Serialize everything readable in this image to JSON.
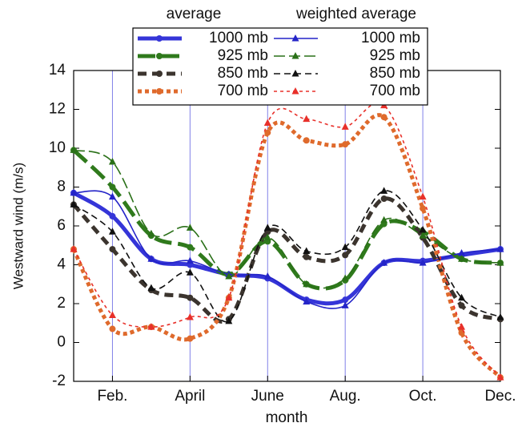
{
  "chart_data": {
    "type": "line",
    "legend_titles": [
      "average",
      "weighted average"
    ],
    "xlabel": "month",
    "ylabel": "Westward wind (m/s)",
    "x": [
      1,
      2,
      3,
      4,
      5,
      6,
      7,
      8,
      9,
      10,
      11,
      12
    ],
    "xlim": [
      1,
      12
    ],
    "xticks": [
      {
        "value": 2,
        "label": "Feb."
      },
      {
        "value": 4,
        "label": "April"
      },
      {
        "value": 6,
        "label": "June"
      },
      {
        "value": 8,
        "label": "Aug."
      },
      {
        "value": 10,
        "label": "Oct."
      },
      {
        "value": 12,
        "label": "Dec."
      }
    ],
    "ylim": [
      -2,
      14
    ],
    "yticks": [
      -2,
      0,
      2,
      4,
      6,
      8,
      10,
      12,
      14
    ],
    "grid": true,
    "series": [
      {
        "name": "1000 mb",
        "color": "#3535d8",
        "marker": "circle",
        "values": [
          7.7,
          6.5,
          4.3,
          4.0,
          3.5,
          3.3,
          2.2,
          2.2,
          4.1,
          4.2,
          4.5,
          4.8
        ]
      },
      {
        "name": "925 mb",
        "color": "#2f7a1c",
        "marker": "circle",
        "values": [
          9.9,
          8.0,
          5.5,
          4.9,
          3.5,
          5.2,
          3.0,
          3.2,
          6.1,
          5.7,
          4.3,
          4.1
        ]
      },
      {
        "name": "850 mb",
        "color": "#3b342e",
        "marker": "circle",
        "values": [
          7.1,
          4.8,
          2.7,
          2.3,
          1.2,
          5.7,
          4.4,
          4.5,
          7.4,
          5.4,
          1.9,
          1.2
        ]
      },
      {
        "name": "700 mb",
        "color": "#df6a2c",
        "marker": "circle",
        "values": [
          4.8,
          0.7,
          0.8,
          0.2,
          2.3,
          10.8,
          10.4,
          10.2,
          11.6,
          6.9,
          0.5,
          -1.8
        ]
      },
      {
        "name": "1000 mb",
        "color": "#2424c8",
        "marker": "triangle",
        "values": [
          7.7,
          7.5,
          4.3,
          4.2,
          3.5,
          3.4,
          2.1,
          1.9,
          4.1,
          4.1,
          4.6,
          4.8
        ]
      },
      {
        "name": "925 mb",
        "color": "#2a7018",
        "marker": "triangle",
        "values": [
          9.9,
          9.3,
          5.6,
          5.9,
          3.4,
          5.4,
          3.0,
          3.3,
          6.3,
          5.5,
          4.3,
          4.1
        ]
      },
      {
        "name": "850 mb",
        "color": "#111111",
        "marker": "triangle",
        "values": [
          7.1,
          5.7,
          2.8,
          3.6,
          1.1,
          5.9,
          4.7,
          4.9,
          7.8,
          5.8,
          2.3,
          1.3
        ]
      },
      {
        "name": "700 mb",
        "color": "#e8302a",
        "marker": "triangle",
        "values": [
          4.8,
          1.4,
          0.8,
          1.3,
          2.3,
          11.3,
          11.5,
          11.1,
          12.2,
          7.5,
          0.8,
          -1.8
        ]
      }
    ]
  }
}
